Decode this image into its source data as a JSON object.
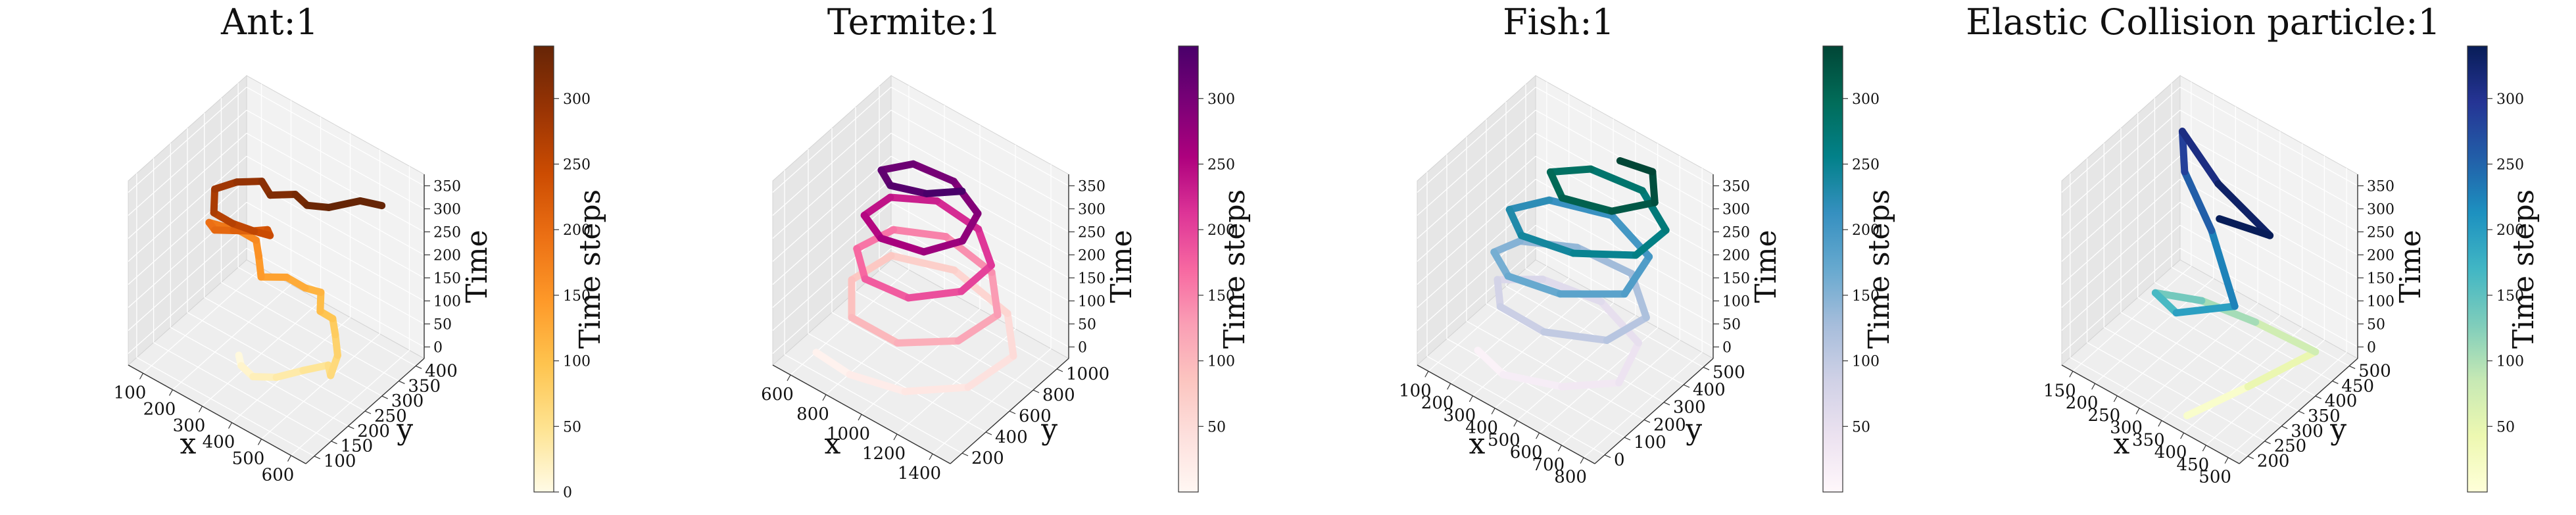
{
  "figure": {
    "panels": [
      {
        "title": "Ant:1",
        "xlabel": "x",
        "ylabel": "y",
        "zlabel": "Time",
        "xticks": [
          "100",
          "200",
          "300",
          "400",
          "500",
          "600"
        ],
        "yticks": [
          "100",
          "150",
          "200",
          "250",
          "300",
          "350",
          "400"
        ],
        "zticks": [
          "0",
          "50",
          "100",
          "150",
          "200",
          "250",
          "300",
          "350"
        ],
        "colorbar": {
          "label": "Time steps",
          "ticks": [
            "0",
            "50",
            "100",
            "150",
            "200",
            "250",
            "300"
          ],
          "max": 340,
          "colors": [
            "#fffbe6",
            "#fee391",
            "#fec44f",
            "#fe9929",
            "#ec7014",
            "#cc4c02",
            "#993404",
            "#662506"
          ]
        }
      },
      {
        "title": "Termite:1",
        "xlabel": "x",
        "ylabel": "y",
        "zlabel": "Time",
        "xticks": [
          "600",
          "800",
          "1000",
          "1200",
          "1400"
        ],
        "yticks": [
          "200",
          "400",
          "600",
          "800",
          "1000"
        ],
        "zticks": [
          "0",
          "50",
          "100",
          "150",
          "200",
          "250",
          "300",
          "350"
        ],
        "colorbar": {
          "label": "Time steps",
          "ticks": [
            "50",
            "100",
            "150",
            "200",
            "250",
            "300"
          ],
          "max": 340,
          "colors": [
            "#fff7f3",
            "#fde0dd",
            "#fcc5c0",
            "#fa9fb5",
            "#f768a1",
            "#dd3497",
            "#ae017e",
            "#7a0177",
            "#49006a"
          ]
        }
      },
      {
        "title": "Fish:1",
        "xlabel": "x",
        "ylabel": "y",
        "zlabel": "Time",
        "xticks": [
          "100",
          "200",
          "300",
          "400",
          "500",
          "600",
          "700",
          "800"
        ],
        "yticks": [
          "0",
          "100",
          "200",
          "300",
          "400",
          "500"
        ],
        "zticks": [
          "0",
          "50",
          "100",
          "150",
          "200",
          "250",
          "300",
          "350"
        ],
        "colorbar": {
          "label": "Time steps",
          "ticks": [
            "50",
            "100",
            "150",
            "200",
            "250",
            "300"
          ],
          "max": 340,
          "colors": [
            "#fff7fb",
            "#ece2f0",
            "#d0d1e6",
            "#a6bddb",
            "#67a9cf",
            "#3690c0",
            "#02818a",
            "#016c59",
            "#014636"
          ]
        }
      },
      {
        "title": "Elastic Collision particle:1",
        "xlabel": "x",
        "ylabel": "y",
        "zlabel": "Time",
        "xticks": [
          "150",
          "200",
          "250",
          "300",
          "350",
          "400",
          "450",
          "500"
        ],
        "yticks": [
          "200",
          "250",
          "300",
          "350",
          "400",
          "450",
          "500"
        ],
        "zticks": [
          "0",
          "50",
          "100",
          "150",
          "200",
          "250",
          "300",
          "350"
        ],
        "colorbar": {
          "label": "Time steps",
          "ticks": [
            "50",
            "100",
            "150",
            "200",
            "250",
            "300"
          ],
          "max": 340,
          "colors": [
            "#ffffd9",
            "#edf8b1",
            "#c7e9b4",
            "#7fcdbb",
            "#41b6c4",
            "#1d91c0",
            "#225ea8",
            "#253494",
            "#081d58"
          ]
        }
      }
    ]
  },
  "chart_data": [
    {
      "type": "line3d",
      "title": "Ant:1",
      "xlabel": "x",
      "ylabel": "y",
      "zlabel": "Time",
      "xlim": [
        60,
        640
      ],
      "ylim": [
        60,
        420
      ],
      "zlim": [
        0,
        360
      ],
      "series": [
        {
          "points": [
            [
              260,
              210,
              0
            ],
            [
              300,
              180,
              10
            ],
            [
              360,
              160,
              20
            ],
            [
              420,
              175,
              30
            ],
            [
              470,
              210,
              40
            ],
            [
              520,
              240,
              50
            ],
            [
              560,
              210,
              60
            ],
            [
              540,
              250,
              70
            ],
            [
              500,
              280,
              80
            ],
            [
              470,
              300,
              90
            ],
            [
              440,
              290,
              100
            ],
            [
              410,
              320,
              110
            ],
            [
              380,
              300,
              120
            ],
            [
              330,
              290,
              130
            ],
            [
              290,
              250,
              140
            ],
            [
              250,
              280,
              150
            ],
            [
              220,
              300,
              160
            ],
            [
              180,
              290,
              170
            ],
            [
              150,
              270,
              180
            ],
            [
              120,
              250,
              190
            ],
            [
              160,
              230,
              200
            ],
            [
              210,
              240,
              210
            ],
            [
              260,
              250,
              220
            ],
            [
              300,
              260,
              230
            ],
            [
              330,
              240,
              240
            ],
            [
              300,
              220,
              250
            ],
            [
              250,
              200,
              260
            ],
            [
              200,
              190,
              270
            ],
            [
              160,
              230,
              280
            ],
            [
              200,
              260,
              290
            ],
            [
              260,
              280,
              300
            ],
            [
              320,
              250,
              310
            ],
            [
              380,
              270,
              320
            ],
            [
              440,
              250,
              330
            ],
            [
              500,
              260,
              340
            ],
            [
              560,
              300,
              350
            ],
            [
              620,
              310,
              355
            ]
          ]
        }
      ],
      "colorbar": {
        "label": "Time steps",
        "range": [
          0,
          340
        ]
      }
    },
    {
      "type": "line3d",
      "title": "Termite:1",
      "xlabel": "x",
      "ylabel": "y",
      "zlabel": "Time",
      "xlim": [
        500,
        1400
      ],
      "ylim": [
        100,
        1100
      ],
      "zlim": [
        0,
        360
      ],
      "series": [
        {
          "points": [
            [
              600,
              300,
              5
            ],
            [
              800,
              250,
              15
            ],
            [
              1050,
              300,
              25
            ],
            [
              1250,
              500,
              35
            ],
            [
              1300,
              800,
              45
            ],
            [
              1150,
              1000,
              55
            ],
            [
              850,
              1050,
              65
            ],
            [
              620,
              900,
              75
            ],
            [
              600,
              600,
              85
            ],
            [
              750,
              350,
              95
            ],
            [
              1000,
              320,
              105
            ],
            [
              1200,
              500,
              115
            ],
            [
              1250,
              750,
              125
            ],
            [
              1100,
              950,
              135
            ],
            [
              850,
              980,
              145
            ],
            [
              680,
              820,
              155
            ],
            [
              650,
              560,
              165
            ],
            [
              800,
              380,
              175
            ],
            [
              1020,
              380,
              185
            ],
            [
              1180,
              560,
              195
            ],
            [
              1200,
              780,
              205
            ],
            [
              1050,
              920,
              215
            ],
            [
              840,
              920,
              225
            ],
            [
              700,
              760,
              235
            ],
            [
              700,
              540,
              245
            ],
            [
              850,
              430,
              255
            ],
            [
              1050,
              460,
              265
            ],
            [
              1150,
              620,
              275
            ],
            [
              1120,
              800,
              285
            ],
            [
              950,
              880,
              295
            ],
            [
              780,
              820,
              305
            ],
            [
              720,
              650,
              315
            ],
            [
              820,
              560,
              325
            ],
            [
              980,
              600,
              335
            ],
            [
              1100,
              700,
              345
            ]
          ]
        }
      ],
      "colorbar": {
        "label": "Time steps",
        "range": [
          0,
          340
        ]
      }
    },
    {
      "type": "line3d",
      "title": "Fish:1",
      "xlabel": "x",
      "ylabel": "y",
      "zlabel": "Time",
      "xlim": [
        80,
        820
      ],
      "ylim": [
        0,
        560
      ],
      "zlim": [
        0,
        360
      ],
      "series": [
        {
          "points": [
            [
              200,
              150,
              5
            ],
            [
              350,
              100,
              15
            ],
            [
              550,
              150,
              25
            ],
            [
              700,
              250,
              35
            ],
            [
              650,
              400,
              45
            ],
            [
              450,
              450,
              55
            ],
            [
              250,
              400,
              65
            ],
            [
              150,
              300,
              75
            ],
            [
              250,
              200,
              85
            ],
            [
              450,
              180,
              95
            ],
            [
              650,
              250,
              105
            ],
            [
              700,
              380,
              115
            ],
            [
              550,
              480,
              125
            ],
            [
              350,
              450,
              135
            ],
            [
              200,
              350,
              145
            ],
            [
              180,
              250,
              155
            ],
            [
              300,
              180,
              165
            ],
            [
              500,
              200,
              175
            ],
            [
              680,
              300,
              185
            ],
            [
              650,
              450,
              195
            ],
            [
              450,
              500,
              205
            ],
            [
              260,
              420,
              215
            ],
            [
              200,
              300,
              225
            ],
            [
              320,
              220,
              235
            ],
            [
              520,
              240,
              245
            ],
            [
              700,
              330,
              255
            ],
            [
              720,
              450,
              265
            ],
            [
              560,
              520,
              275
            ],
            [
              380,
              480,
              285
            ],
            [
              300,
              380,
              295
            ],
            [
              420,
              300,
              305
            ],
            [
              600,
              330,
              315
            ],
            [
              700,
              420,
              325
            ],
            [
              620,
              500,
              335
            ],
            [
              520,
              460,
              345
            ]
          ]
        }
      ],
      "colorbar": {
        "label": "Time steps",
        "range": [
          0,
          340
        ]
      }
    },
    {
      "type": "line3d",
      "title": "Elastic Collision particle:1",
      "xlabel": "x",
      "ylabel": "y",
      "zlabel": "Time",
      "xlim": [
        120,
        500
      ],
      "ylim": [
        160,
        520
      ],
      "zlim": [
        0,
        360
      ],
      "series": [
        {
          "points": [
            [
              360,
              200,
              0
            ],
            [
              420,
              300,
              30
            ],
            [
              480,
              420,
              60
            ],
            [
              380,
              380,
              90
            ],
            [
              300,
              330,
              120
            ],
            [
              250,
              260,
              150
            ],
            [
              330,
              210,
              180
            ],
            [
              420,
              260,
              210
            ],
            [
              300,
              360,
              240
            ],
            [
              200,
              420,
              270
            ],
            [
              160,
              470,
              300
            ],
            [
              300,
              380,
              320
            ],
            [
              460,
              310,
              340
            ],
            [
              380,
              270,
              355
            ]
          ]
        }
      ],
      "colorbar": {
        "label": "Time steps",
        "range": [
          0,
          340
        ]
      }
    }
  ]
}
